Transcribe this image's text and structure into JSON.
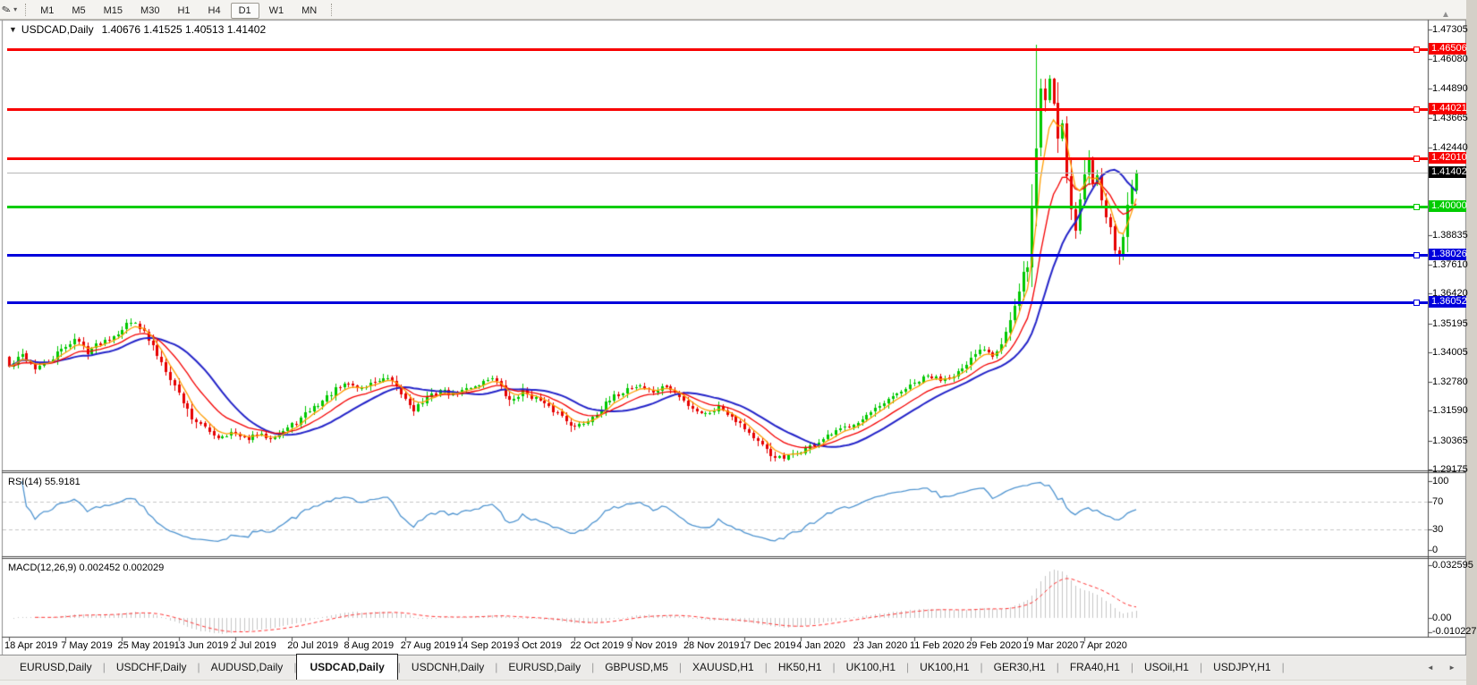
{
  "toolbar": {
    "draw_tool_icon": "✎",
    "dropdown_arrow_icon": "▾",
    "timeframes": [
      "M1",
      "M5",
      "M15",
      "M30",
      "H1",
      "H4",
      "D1",
      "W1",
      "MN"
    ],
    "active_timeframe": "D1",
    "scroll_up_icon": "▲"
  },
  "chart": {
    "collapse_icon": "▼",
    "symbol": "USDCAD,Daily",
    "ohlc": "1.40676 1.41525 1.40513 1.41402"
  },
  "rsi_panel": {
    "label": "RSI(14) 55.9181"
  },
  "macd_panel": {
    "label": "MACD(12,26,9) 0.002452 0.002029"
  },
  "tabs": {
    "items": [
      "EURUSD,Daily",
      "USDCHF,Daily",
      "AUDUSD,Daily",
      "USDCAD,Daily",
      "USDCNH,Daily",
      "EURUSD,Daily",
      "GBPUSD,M5",
      "XAUUSD,H1",
      "HK50,H1",
      "UK100,H1",
      "UK100,H1",
      "GER30,H1",
      "FRA40,H1",
      "USOil,H1",
      "USDJPY,H1"
    ],
    "active_index": 3,
    "separator": "|",
    "scroll_left_icon": "◄",
    "scroll_right_icon": "►"
  },
  "chart_data": {
    "type": "candlestick",
    "symbol": "USDCAD",
    "timeframe": "Daily",
    "open": "1.40676",
    "high": "1.41525",
    "low": "1.40513",
    "close": "1.41402",
    "y_range": [
      1.2906,
      1.4768
    ],
    "y_axis_ticks": [
      "1.47305",
      "1.46080",
      "1.44890",
      "1.43665",
      "1.42440",
      "1.38835",
      "1.37610",
      "1.36420",
      "1.35195",
      "1.34005",
      "1.32780",
      "1.31590",
      "1.30365",
      "1.29175"
    ],
    "x_tick_labels": [
      "18 Apr 2019",
      "7 May 2019",
      "25 May 2019",
      "13 Jun 2019",
      "2 Jul 2019",
      "20 Jul 2019",
      "8 Aug 2019",
      "27 Aug 2019",
      "14 Sep 2019",
      "3 Oct 2019",
      "22 Oct 2019",
      "9 Nov 2019",
      "28 Nov 2019",
      "17 Dec 2019",
      "4 Jan 2020",
      "23 Jan 2020",
      "11 Feb 2020",
      "29 Feb 2020",
      "19 Mar 2020",
      "7 Apr 2020"
    ],
    "candles_per_x_tick": 13,
    "candle_count": 260,
    "levels": [
      {
        "text": "1.46506",
        "value": 1.46506,
        "color": "#f80000",
        "kind": "resistance"
      },
      {
        "text": "1.44021",
        "value": 1.44021,
        "color": "#f80000",
        "kind": "resistance"
      },
      {
        "text": "1.42010",
        "value": 1.4201,
        "color": "#f80000",
        "kind": "resistance"
      },
      {
        "text": "1.40000",
        "value": 1.4,
        "color": "#00cc00",
        "kind": "support"
      },
      {
        "text": "1.38026",
        "value": 1.38026,
        "color": "#0000dc",
        "kind": "support"
      },
      {
        "text": "1.36052",
        "value": 1.36052,
        "color": "#0000dc",
        "kind": "support"
      }
    ],
    "current_price": {
      "text": "1.41402",
      "value": 1.41402,
      "label_bg": "#000000",
      "line_color": "#b6b6b6"
    },
    "close_anchors": [
      [
        0,
        1.334
      ],
      [
        3,
        1.339
      ],
      [
        6,
        1.3335
      ],
      [
        9,
        1.336
      ],
      [
        12,
        1.341
      ],
      [
        15,
        1.3455
      ],
      [
        18,
        1.3405
      ],
      [
        21,
        1.344
      ],
      [
        24,
        1.347
      ],
      [
        27,
        1.3515
      ],
      [
        29,
        1.353
      ],
      [
        31,
        1.348
      ],
      [
        33,
        1.342
      ],
      [
        36,
        1.333
      ],
      [
        39,
        1.323
      ],
      [
        42,
        1.313
      ],
      [
        45,
        1.3085
      ],
      [
        48,
        1.305
      ],
      [
        51,
        1.307
      ],
      [
        54,
        1.304
      ],
      [
        57,
        1.306
      ],
      [
        60,
        1.305
      ],
      [
        63,
        1.3075
      ],
      [
        66,
        1.311
      ],
      [
        69,
        1.316
      ],
      [
        72,
        1.32
      ],
      [
        75,
        1.3245
      ],
      [
        78,
        1.327
      ],
      [
        81,
        1.325
      ],
      [
        84,
        1.328
      ],
      [
        87,
        1.329
      ],
      [
        90,
        1.323
      ],
      [
        93,
        1.3165
      ],
      [
        96,
        1.321
      ],
      [
        99,
        1.3245
      ],
      [
        102,
        1.3225
      ],
      [
        105,
        1.325
      ],
      [
        108,
        1.327
      ],
      [
        111,
        1.33
      ],
      [
        113,
        1.3255
      ],
      [
        115,
        1.3195
      ],
      [
        118,
        1.324
      ],
      [
        121,
        1.321
      ],
      [
        124,
        1.317
      ],
      [
        127,
        1.314
      ],
      [
        130,
        1.309
      ],
      [
        133,
        1.312
      ],
      [
        136,
        1.317
      ],
      [
        139,
        1.3215
      ],
      [
        142,
        1.325
      ],
      [
        145,
        1.3265
      ],
      [
        148,
        1.3235
      ],
      [
        151,
        1.326
      ],
      [
        154,
        1.3215
      ],
      [
        157,
        1.317
      ],
      [
        160,
        1.3145
      ],
      [
        163,
        1.3175
      ],
      [
        166,
        1.314
      ],
      [
        169,
        1.309
      ],
      [
        172,
        1.303
      ],
      [
        175,
        1.2975
      ],
      [
        178,
        1.296
      ],
      [
        181,
        1.2985
      ],
      [
        184,
        1.301
      ],
      [
        187,
        1.304
      ],
      [
        190,
        1.307
      ],
      [
        193,
        1.31
      ],
      [
        196,
        1.3125
      ],
      [
        199,
        1.316
      ],
      [
        202,
        1.32
      ],
      [
        205,
        1.324
      ],
      [
        208,
        1.327
      ],
      [
        211,
        1.33
      ],
      [
        214,
        1.329
      ],
      [
        217,
        1.331
      ],
      [
        220,
        1.334
      ],
      [
        222,
        1.3395
      ],
      [
        224,
        1.342
      ],
      [
        226,
        1.339
      ],
      [
        228,
        1.344
      ],
      [
        230,
        1.353
      ],
      [
        232,
        1.364
      ],
      [
        233,
        1.372
      ],
      [
        234,
        1.376
      ],
      [
        235,
        1.399
      ],
      [
        236,
        1.424
      ],
      [
        237,
        1.449
      ],
      [
        238,
        1.444
      ],
      [
        239,
        1.453
      ],
      [
        240,
        1.443
      ],
      [
        241,
        1.429
      ],
      [
        242,
        1.435
      ],
      [
        243,
        1.415
      ],
      [
        244,
        1.399
      ],
      [
        245,
        1.391
      ],
      [
        246,
        1.403
      ],
      [
        247,
        1.413
      ],
      [
        248,
        1.419
      ],
      [
        249,
        1.41
      ],
      [
        250,
        1.414
      ],
      [
        251,
        1.405
      ],
      [
        252,
        1.397
      ],
      [
        253,
        1.39
      ],
      [
        254,
        1.3835
      ],
      [
        255,
        1.379
      ],
      [
        256,
        1.388
      ],
      [
        257,
        1.401
      ],
      [
        258,
        1.41
      ],
      [
        259,
        1.414
      ]
    ],
    "spike_high": {
      "index": 236,
      "price": 1.4668
    },
    "last_candle": {
      "o": 1.40676,
      "h": 1.41525,
      "l": 1.40513,
      "c": 1.41402
    },
    "moving_averages": [
      {
        "period": 20,
        "type": "sma",
        "color": "#2323c8",
        "width": 2,
        "name": "ma-slow"
      },
      {
        "period": 13,
        "type": "ema",
        "color": "#f40000",
        "width": 1.3,
        "name": "ma-mid"
      },
      {
        "period": 5,
        "type": "ema",
        "color": "#ff9c00",
        "width": 1.3,
        "name": "ma-fast"
      }
    ],
    "rsi": {
      "period": 14,
      "value": 55.9181,
      "color": "#4f94d0",
      "range": [
        0,
        100
      ],
      "axis_labels": [
        {
          "text": "100",
          "value": 100
        },
        {
          "text": "70",
          "value": 70
        },
        {
          "text": "30",
          "value": 30
        },
        {
          "text": "0",
          "value": 0
        }
      ],
      "dashed_levels": [
        70,
        30
      ]
    },
    "macd": {
      "fast": 12,
      "slow": 26,
      "signal_period": 9,
      "value": 0.002452,
      "signal_value": 0.002029,
      "hist_color": "#c6c6c6",
      "signal_color": "#ff3232",
      "axis_labels": [
        {
          "text": "0.032595",
          "value": 0.032595
        },
        {
          "text": "0.00",
          "value": 0
        },
        {
          "text": "-0.010227",
          "value": -0.010227
        }
      ]
    },
    "colors": {
      "up": "#00c800",
      "down": "#e60000",
      "axis_line": "#4a4a4a",
      "rsi_grid": "#c6c6c6"
    },
    "render_seed": 42
  }
}
